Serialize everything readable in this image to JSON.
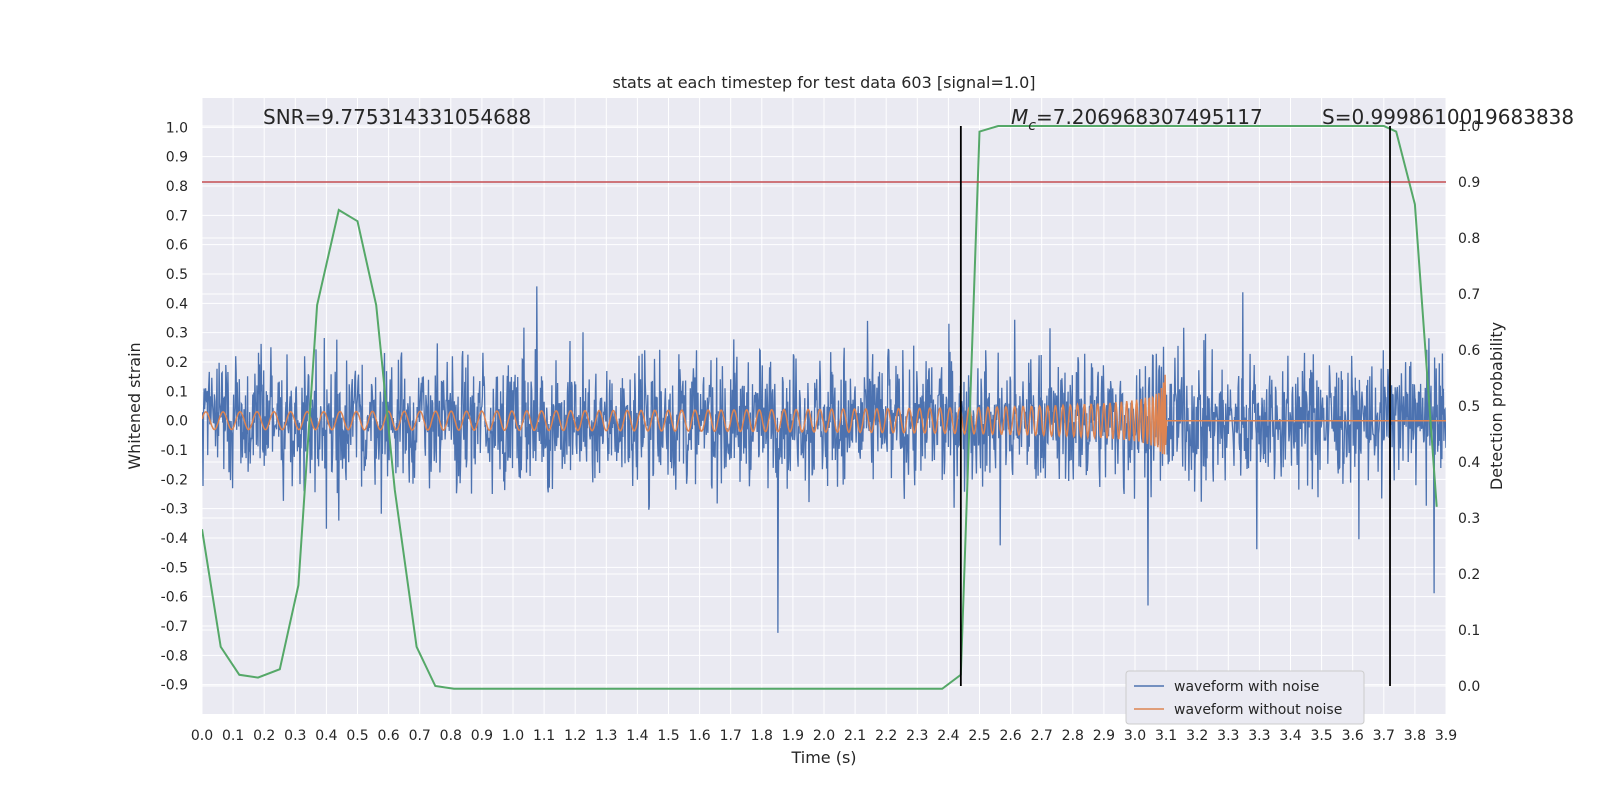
{
  "chart_data": {
    "type": "line",
    "title": "stats at each timestep for test data 603 [signal=1.0]",
    "xlabel": "Time (s)",
    "ylabel": "Whitened strain",
    "y2label": "Detection probability",
    "xlim": [
      0.0,
      4.0
    ],
    "ylim": [
      -1.0,
      1.1
    ],
    "y2lim": [
      -0.05,
      1.05
    ],
    "grid": true,
    "x_ticks": [
      "0.0",
      "0.1",
      "0.2",
      "0.3",
      "0.4",
      "0.5",
      "0.6",
      "0.7",
      "0.8",
      "0.9",
      "1.0",
      "1.1",
      "1.2",
      "1.3",
      "1.4",
      "1.5",
      "1.6",
      "1.7",
      "1.8",
      "1.9",
      "2.0",
      "2.1",
      "2.2",
      "2.3",
      "2.4",
      "2.5",
      "2.6",
      "2.7",
      "2.8",
      "2.9",
      "3.0",
      "3.1",
      "3.2",
      "3.3",
      "3.3",
      "3.4",
      "3.5",
      "3.6",
      "3.7",
      "3.8",
      "3.9"
    ],
    "y_ticks": [
      "1.0",
      "0.9",
      "0.8",
      "0.7",
      "0.6",
      "0.5",
      "0.4",
      "0.3",
      "0.2",
      "0.1",
      "0.0",
      "-0.1",
      "-0.2",
      "-0.3",
      "-0.4",
      "-0.5",
      "-0.6",
      "-0.7",
      "-0.8",
      "-0.9"
    ],
    "y2_ticks": [
      "1.0",
      "0.9",
      "0.8",
      "0.7",
      "0.6",
      "0.5",
      "0.4",
      "0.3",
      "0.2",
      "0.1",
      "0.0"
    ],
    "annotations": {
      "snr": "SNR=9.775314331054688",
      "mc_symbol": "M",
      "mc_sub": "c",
      "mc_value": "=7.206968307495117",
      "s": "S=0.9998610019683838"
    },
    "threshold_right_axis": 0.9,
    "vertical_markers": [
      2.44,
      3.82
    ],
    "series": [
      {
        "name": "waveform with noise",
        "color": "#4c72b0",
        "axis": "left",
        "noise_envelope": 0.75
      },
      {
        "name": "waveform without noise",
        "color": "#dd8452",
        "axis": "left",
        "start_amplitude": 0.03,
        "peak_amplitude": 0.25,
        "merger_time": 3.1
      },
      {
        "name": "detection probability",
        "color": "#55a868",
        "axis": "right",
        "x": [
          0.0,
          0.06,
          0.12,
          0.18,
          0.25,
          0.31,
          0.37,
          0.44,
          0.5,
          0.56,
          0.62,
          0.69,
          0.75,
          0.81,
          2.38,
          2.44,
          2.5,
          2.56,
          3.8,
          3.84,
          3.9,
          3.97
        ],
        "y": [
          0.28,
          0.07,
          0.02,
          0.015,
          0.03,
          0.18,
          0.68,
          0.85,
          0.83,
          0.68,
          0.35,
          0.07,
          0.0,
          -0.005,
          -0.005,
          0.02,
          0.99,
          1.0,
          1.0,
          0.99,
          0.86,
          0.32
        ]
      }
    ],
    "legend": {
      "placement": "lower-right",
      "entries": [
        "waveform with noise",
        "waveform without noise"
      ]
    }
  }
}
